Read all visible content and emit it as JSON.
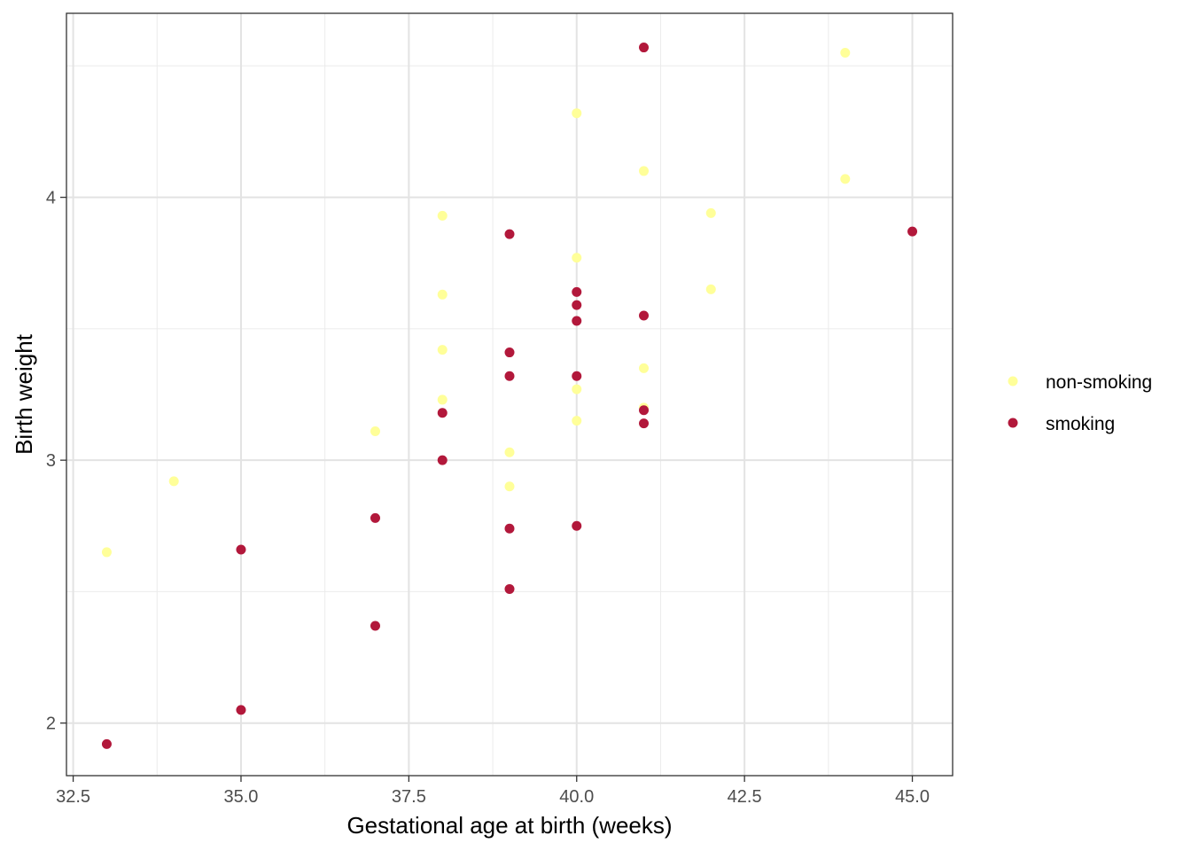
{
  "chart_data": {
    "type": "scatter",
    "title": "",
    "xlabel": "Gestational age at birth (weeks)",
    "ylabel": "Birth weight",
    "xlim": [
      32.4,
      45.6
    ],
    "ylim": [
      1.8,
      4.7
    ],
    "x_ticks": [
      32.5,
      35.0,
      37.5,
      40.0,
      42.5,
      45.0
    ],
    "x_tick_labels": [
      "32.5",
      "35.0",
      "37.5",
      "40.0",
      "42.5",
      "45.0"
    ],
    "y_ticks": [
      2,
      3,
      4
    ],
    "y_tick_labels": [
      "2",
      "3",
      "4"
    ],
    "grid": true,
    "legend_position": "right",
    "series": [
      {
        "name": "non-smoking",
        "color": "#ffff99",
        "points": [
          [
            33,
            2.65
          ],
          [
            34,
            2.92
          ],
          [
            37,
            3.11
          ],
          [
            38,
            3.93
          ],
          [
            38,
            3.63
          ],
          [
            38,
            3.42
          ],
          [
            38,
            3.23
          ],
          [
            39,
            3.03
          ],
          [
            39,
            2.9
          ],
          [
            40,
            4.32
          ],
          [
            40,
            3.77
          ],
          [
            40,
            3.27
          ],
          [
            40,
            3.15
          ],
          [
            41,
            4.1
          ],
          [
            41,
            3.35
          ],
          [
            41,
            3.2
          ],
          [
            42,
            3.94
          ],
          [
            42,
            3.65
          ],
          [
            44,
            4.55
          ],
          [
            44,
            4.07
          ]
        ]
      },
      {
        "name": "smoking",
        "color": "#b2183b",
        "points": [
          [
            33,
            1.92
          ],
          [
            35,
            2.66
          ],
          [
            35,
            2.05
          ],
          [
            37,
            2.78
          ],
          [
            37,
            2.37
          ],
          [
            38,
            3.18
          ],
          [
            38,
            3.0
          ],
          [
            39,
            3.86
          ],
          [
            39,
            3.41
          ],
          [
            39,
            3.32
          ],
          [
            39,
            2.74
          ],
          [
            39,
            2.51
          ],
          [
            40,
            3.64
          ],
          [
            40,
            3.59
          ],
          [
            40,
            3.53
          ],
          [
            40,
            3.32
          ],
          [
            40,
            2.75
          ],
          [
            41,
            4.57
          ],
          [
            41,
            3.55
          ],
          [
            41,
            3.19
          ],
          [
            41,
            3.14
          ],
          [
            45,
            3.87
          ]
        ]
      }
    ]
  }
}
